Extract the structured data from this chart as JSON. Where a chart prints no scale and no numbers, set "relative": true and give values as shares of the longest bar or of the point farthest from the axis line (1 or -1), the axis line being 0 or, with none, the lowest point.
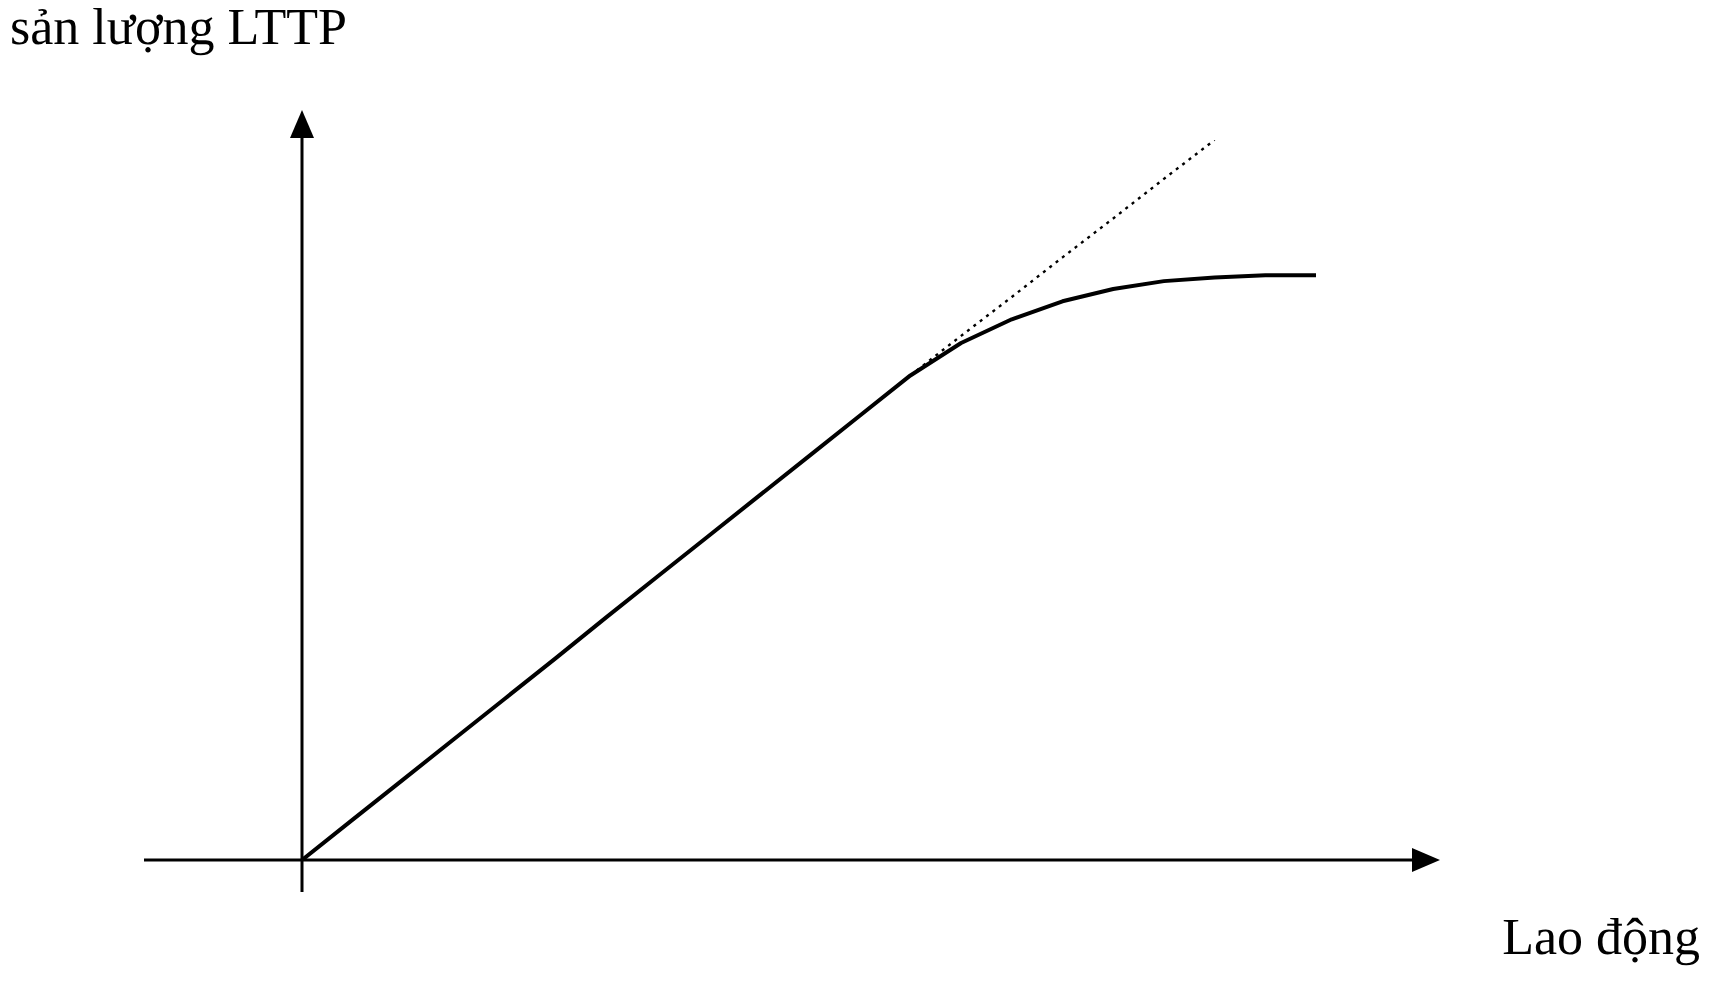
{
  "chart_data": {
    "type": "line",
    "xlabel": "Lao động",
    "ylabel": "sản lượng LTTP",
    "relative": true,
    "legend": false,
    "grid": false,
    "marker": "none",
    "categories": [
      null,
      null,
      null,
      null,
      null,
      null,
      null,
      null,
      null,
      null,
      null,
      null,
      null,
      null,
      null,
      null,
      null,
      null,
      null,
      null,
      null
    ],
    "series": [
      {
        "color": "#000000",
        "line_style": "solid",
        "values": [
          0,
          0.056,
          0.112,
          0.168,
          0.224,
          0.28,
          0.337,
          0.393,
          0.449,
          0.505,
          0.561,
          0.617,
          0.673,
          0.718,
          0.751,
          0.776,
          0.793,
          0.804,
          0.809,
          0.812,
          0.812
        ]
      },
      {
        "color": "#000000",
        "line_style": "dotted",
        "values": [
          null,
          null,
          null,
          null,
          null,
          null,
          null,
          null,
          null,
          null,
          null,
          null,
          0.673,
          0.728,
          0.782,
          0.837,
          0.891,
          0.946,
          1.0,
          null,
          null
        ]
      }
    ]
  }
}
